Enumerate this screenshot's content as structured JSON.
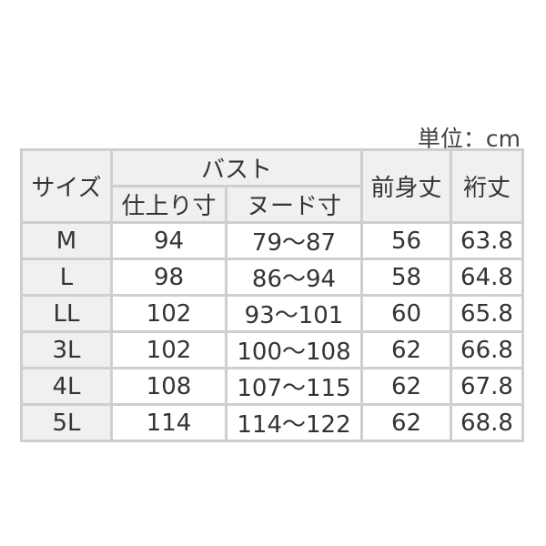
{
  "unit_label": "単位：cm",
  "headers": {
    "size": "サイズ",
    "bust": "バスト",
    "finished": "仕上り寸",
    "nude": "ヌード寸",
    "length": "前身丈",
    "sleeve": "裄丈"
  },
  "rows": [
    [
      "M",
      "94",
      "79～87",
      "56",
      "63.8"
    ],
    [
      "L",
      "98",
      "86～94",
      "58",
      "64.8"
    ],
    [
      "LL",
      "102",
      "93～101",
      "60",
      "65.8"
    ],
    [
      "3L",
      "102",
      "100～108",
      "62",
      "66.8"
    ],
    [
      "4L",
      "108",
      "107～115",
      "62",
      "67.8"
    ],
    [
      "5L",
      "114",
      "114～122",
      "62",
      "68.8"
    ]
  ]
}
